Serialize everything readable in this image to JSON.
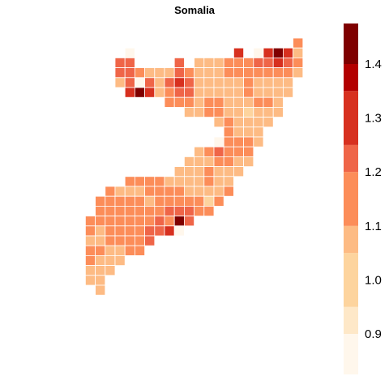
{
  "title": "Somalia",
  "legend": {
    "tick_labels": [
      "0.9",
      "1.0",
      "1.1",
      "1.2",
      "1.3",
      "1.4"
    ],
    "tick_values": [
      0.9,
      1.0,
      1.1,
      1.2,
      1.3,
      1.4
    ],
    "range": [
      0.825,
      1.475
    ],
    "band_colors": [
      "#FFF7EC",
      "#FEE8C8",
      "#FDD49E",
      "#FDBB84",
      "#FC8D59",
      "#EF6548",
      "#D7301F",
      "#B30000",
      "#7F0000"
    ],
    "band_breaks": [
      0.825,
      0.9,
      0.95,
      1.05,
      1.1,
      1.2,
      1.25,
      1.35,
      1.4,
      1.475
    ]
  },
  "chart_data": {
    "type": "heatmap",
    "title": "Somalia",
    "legend_position": "right",
    "value_range": [
      0.825,
      1.475
    ],
    "colormap": "OrRd",
    "cells": [
      {
        "col": 18,
        "row": 0,
        "v": 1.1
      },
      {
        "col": 1,
        "row": 1,
        "v": 0.86
      },
      {
        "col": 12,
        "row": 1,
        "v": 1.3
      },
      {
        "col": 14,
        "row": 1,
        "v": 0.86
      },
      {
        "col": 15,
        "row": 1,
        "v": 1.28
      },
      {
        "col": 16,
        "row": 1,
        "v": 1.45
      },
      {
        "col": 17,
        "row": 1,
        "v": 1.28
      },
      {
        "col": 18,
        "row": 1,
        "v": 1.05
      },
      {
        "col": 0,
        "row": 2,
        "v": 1.22
      },
      {
        "col": 1,
        "row": 2,
        "v": 1.22
      },
      {
        "col": 6,
        "row": 2,
        "v": 1.2
      },
      {
        "col": 8,
        "row": 2,
        "v": 1.05
      },
      {
        "col": 9,
        "row": 2,
        "v": 1.05
      },
      {
        "col": 10,
        "row": 2,
        "v": 1.05
      },
      {
        "col": 11,
        "row": 2,
        "v": 1.1
      },
      {
        "col": 12,
        "row": 2,
        "v": 1.1
      },
      {
        "col": 13,
        "row": 2,
        "v": 1.15
      },
      {
        "col": 14,
        "row": 2,
        "v": 1.2
      },
      {
        "col": 15,
        "row": 2,
        "v": 1.2
      },
      {
        "col": 16,
        "row": 2,
        "v": 1.3
      },
      {
        "col": 17,
        "row": 2,
        "v": 1.22
      },
      {
        "col": 18,
        "row": 2,
        "v": 1.1
      },
      {
        "col": 0,
        "row": 3,
        "v": 1.22
      },
      {
        "col": 1,
        "row": 3,
        "v": 1.22
      },
      {
        "col": 2,
        "row": 3,
        "v": 1.1
      },
      {
        "col": 3,
        "row": 3,
        "v": 1.05
      },
      {
        "col": 4,
        "row": 3,
        "v": 1.05
      },
      {
        "col": 5,
        "row": 3,
        "v": 1.05
      },
      {
        "col": 6,
        "row": 3,
        "v": 1.22
      },
      {
        "col": 7,
        "row": 3,
        "v": 1.1
      },
      {
        "col": 8,
        "row": 3,
        "v": 1.05
      },
      {
        "col": 9,
        "row": 3,
        "v": 1.05
      },
      {
        "col": 10,
        "row": 3,
        "v": 1.05
      },
      {
        "col": 11,
        "row": 3,
        "v": 1.1
      },
      {
        "col": 12,
        "row": 3,
        "v": 1.1
      },
      {
        "col": 13,
        "row": 3,
        "v": 1.1
      },
      {
        "col": 14,
        "row": 3,
        "v": 1.1
      },
      {
        "col": 15,
        "row": 3,
        "v": 1.1
      },
      {
        "col": 16,
        "row": 3,
        "v": 1.1
      },
      {
        "col": 17,
        "row": 3,
        "v": 1.1
      },
      {
        "col": 18,
        "row": 3,
        "v": 1.05
      },
      {
        "col": 0,
        "row": 4,
        "v": 1.05
      },
      {
        "col": 1,
        "row": 4,
        "v": 1.22
      },
      {
        "col": 2,
        "row": 4,
        "v": 0.86
      },
      {
        "col": 3,
        "row": 4,
        "v": 1.22
      },
      {
        "col": 4,
        "row": 4,
        "v": 1.05
      },
      {
        "col": 5,
        "row": 4,
        "v": 1.22
      },
      {
        "col": 6,
        "row": 4,
        "v": 1.3
      },
      {
        "col": 7,
        "row": 4,
        "v": 1.22
      },
      {
        "col": 8,
        "row": 4,
        "v": 1.05
      },
      {
        "col": 9,
        "row": 4,
        "v": 1.05
      },
      {
        "col": 10,
        "row": 4,
        "v": 1.05
      },
      {
        "col": 11,
        "row": 4,
        "v": 1.05
      },
      {
        "col": 12,
        "row": 4,
        "v": 1.05
      },
      {
        "col": 13,
        "row": 4,
        "v": 1.1
      },
      {
        "col": 14,
        "row": 4,
        "v": 1.05
      },
      {
        "col": 15,
        "row": 4,
        "v": 1.05
      },
      {
        "col": 16,
        "row": 4,
        "v": 1.05
      },
      {
        "col": 17,
        "row": 4,
        "v": 1.05
      },
      {
        "col": 1,
        "row": 5,
        "v": 1.3
      },
      {
        "col": 2,
        "row": 5,
        "v": 1.45
      },
      {
        "col": 3,
        "row": 5,
        "v": 1.3
      },
      {
        "col": 4,
        "row": 5,
        "v": 1.05
      },
      {
        "col": 5,
        "row": 5,
        "v": 1.1
      },
      {
        "col": 6,
        "row": 5,
        "v": 1.22
      },
      {
        "col": 7,
        "row": 5,
        "v": 1.22
      },
      {
        "col": 8,
        "row": 5,
        "v": 1.05
      },
      {
        "col": 9,
        "row": 5,
        "v": 1.05
      },
      {
        "col": 10,
        "row": 5,
        "v": 1.05
      },
      {
        "col": 11,
        "row": 5,
        "v": 1.05
      },
      {
        "col": 12,
        "row": 5,
        "v": 1.05
      },
      {
        "col": 13,
        "row": 5,
        "v": 1.1
      },
      {
        "col": 14,
        "row": 5,
        "v": 1.05
      },
      {
        "col": 15,
        "row": 5,
        "v": 1.05
      },
      {
        "col": 16,
        "row": 5,
        "v": 1.05
      },
      {
        "col": 17,
        "row": 5,
        "v": 1.05
      },
      {
        "col": 5,
        "row": 6,
        "v": 1.1
      },
      {
        "col": 6,
        "row": 6,
        "v": 1.1
      },
      {
        "col": 7,
        "row": 6,
        "v": 1.1
      },
      {
        "col": 8,
        "row": 6,
        "v": 1.05
      },
      {
        "col": 9,
        "row": 6,
        "v": 1.1
      },
      {
        "col": 10,
        "row": 6,
        "v": 1.1
      },
      {
        "col": 11,
        "row": 6,
        "v": 1.05
      },
      {
        "col": 12,
        "row": 6,
        "v": 1.05
      },
      {
        "col": 13,
        "row": 6,
        "v": 1.05
      },
      {
        "col": 14,
        "row": 6,
        "v": 1.1
      },
      {
        "col": 15,
        "row": 6,
        "v": 1.1
      },
      {
        "col": 16,
        "row": 6,
        "v": 1.05
      },
      {
        "col": 7,
        "row": 7,
        "v": 1.05
      },
      {
        "col": 8,
        "row": 7,
        "v": 1.05
      },
      {
        "col": 9,
        "row": 7,
        "v": 1.1
      },
      {
        "col": 10,
        "row": 7,
        "v": 1.1
      },
      {
        "col": 11,
        "row": 7,
        "v": 1.05
      },
      {
        "col": 12,
        "row": 7,
        "v": 1.05
      },
      {
        "col": 13,
        "row": 7,
        "v": 0.95
      },
      {
        "col": 14,
        "row": 7,
        "v": 1.05
      },
      {
        "col": 15,
        "row": 7,
        "v": 1.05
      },
      {
        "col": 16,
        "row": 7,
        "v": 1.05
      },
      {
        "col": 10,
        "row": 8,
        "v": 1.05
      },
      {
        "col": 11,
        "row": 8,
        "v": 1.1
      },
      {
        "col": 12,
        "row": 8,
        "v": 1.05
      },
      {
        "col": 13,
        "row": 8,
        "v": 1.05
      },
      {
        "col": 14,
        "row": 8,
        "v": 1.05
      },
      {
        "col": 15,
        "row": 8,
        "v": 1.05
      },
      {
        "col": 11,
        "row": 9,
        "v": 1.1
      },
      {
        "col": 12,
        "row": 9,
        "v": 1.05
      },
      {
        "col": 13,
        "row": 9,
        "v": 1.05
      },
      {
        "col": 14,
        "row": 9,
        "v": 1.05
      },
      {
        "col": 10,
        "row": 10,
        "v": 0.86
      },
      {
        "col": 11,
        "row": 10,
        "v": 1.1
      },
      {
        "col": 12,
        "row": 10,
        "v": 1.1
      },
      {
        "col": 13,
        "row": 10,
        "v": 1.1
      },
      {
        "col": 14,
        "row": 10,
        "v": 1.05
      },
      {
        "col": 8,
        "row": 11,
        "v": 1.05
      },
      {
        "col": 9,
        "row": 11,
        "v": 1.1
      },
      {
        "col": 10,
        "row": 11,
        "v": 1.22
      },
      {
        "col": 11,
        "row": 11,
        "v": 1.1
      },
      {
        "col": 12,
        "row": 11,
        "v": 1.1
      },
      {
        "col": 13,
        "row": 11,
        "v": 1.1
      },
      {
        "col": 7,
        "row": 12,
        "v": 1.05
      },
      {
        "col": 8,
        "row": 12,
        "v": 1.05
      },
      {
        "col": 9,
        "row": 12,
        "v": 1.05
      },
      {
        "col": 10,
        "row": 12,
        "v": 1.1
      },
      {
        "col": 11,
        "row": 12,
        "v": 1.1
      },
      {
        "col": 12,
        "row": 12,
        "v": 1.05
      },
      {
        "col": 13,
        "row": 12,
        "v": 1.05
      },
      {
        "col": 6,
        "row": 13,
        "v": 1.05
      },
      {
        "col": 7,
        "row": 13,
        "v": 1.05
      },
      {
        "col": 8,
        "row": 13,
        "v": 1.05
      },
      {
        "col": 9,
        "row": 13,
        "v": 1.1
      },
      {
        "col": 10,
        "row": 13,
        "v": 1.05
      },
      {
        "col": 11,
        "row": 13,
        "v": 1.05
      },
      {
        "col": 12,
        "row": 13,
        "v": 1.05
      },
      {
        "col": 1,
        "row": 14,
        "v": 1.1
      },
      {
        "col": 2,
        "row": 14,
        "v": 1.1
      },
      {
        "col": 3,
        "row": 14,
        "v": 1.1
      },
      {
        "col": 4,
        "row": 14,
        "v": 1.1
      },
      {
        "col": 5,
        "row": 14,
        "v": 1.05
      },
      {
        "col": 6,
        "row": 14,
        "v": 1.05
      },
      {
        "col": 7,
        "row": 14,
        "v": 1.05
      },
      {
        "col": 8,
        "row": 14,
        "v": 1.05
      },
      {
        "col": 9,
        "row": 14,
        "v": 1.1
      },
      {
        "col": 10,
        "row": 14,
        "v": 1.05
      },
      {
        "col": 11,
        "row": 14,
        "v": 1.05
      },
      {
        "col": -1,
        "row": 15,
        "v": 1.1
      },
      {
        "col": 0,
        "row": 15,
        "v": 1.05
      },
      {
        "col": 1,
        "row": 15,
        "v": 1.05
      },
      {
        "col": 2,
        "row": 15,
        "v": 1.05
      },
      {
        "col": 3,
        "row": 15,
        "v": 1.1
      },
      {
        "col": 4,
        "row": 15,
        "v": 1.1
      },
      {
        "col": 5,
        "row": 15,
        "v": 1.1
      },
      {
        "col": 6,
        "row": 15,
        "v": 1.1
      },
      {
        "col": 7,
        "row": 15,
        "v": 1.05
      },
      {
        "col": 8,
        "row": 15,
        "v": 1.05
      },
      {
        "col": 9,
        "row": 15,
        "v": 1.05
      },
      {
        "col": 10,
        "row": 15,
        "v": 1.05
      },
      {
        "col": 11,
        "row": 15,
        "v": 1.1
      },
      {
        "col": -2,
        "row": 16,
        "v": 1.1
      },
      {
        "col": -1,
        "row": 16,
        "v": 1.1
      },
      {
        "col": 0,
        "row": 16,
        "v": 1.1
      },
      {
        "col": 1,
        "row": 16,
        "v": 1.1
      },
      {
        "col": 2,
        "row": 16,
        "v": 1.1
      },
      {
        "col": 3,
        "row": 16,
        "v": 1.05
      },
      {
        "col": 4,
        "row": 16,
        "v": 1.1
      },
      {
        "col": 5,
        "row": 16,
        "v": 1.1
      },
      {
        "col": 6,
        "row": 16,
        "v": 1.1
      },
      {
        "col": 7,
        "row": 16,
        "v": 1.1
      },
      {
        "col": 8,
        "row": 16,
        "v": 1.1
      },
      {
        "col": 9,
        "row": 16,
        "v": 0.95
      },
      {
        "col": 10,
        "row": 16,
        "v": 1.1
      },
      {
        "col": -2,
        "row": 17,
        "v": 1.1
      },
      {
        "col": -1,
        "row": 17,
        "v": 1.1
      },
      {
        "col": 0,
        "row": 17,
        "v": 1.1
      },
      {
        "col": 1,
        "row": 17,
        "v": 1.1
      },
      {
        "col": 2,
        "row": 17,
        "v": 1.1
      },
      {
        "col": 3,
        "row": 17,
        "v": 1.1
      },
      {
        "col": 4,
        "row": 17,
        "v": 1.1
      },
      {
        "col": 5,
        "row": 17,
        "v": 1.22
      },
      {
        "col": 6,
        "row": 17,
        "v": 1.22
      },
      {
        "col": 7,
        "row": 17,
        "v": 1.22
      },
      {
        "col": 8,
        "row": 17,
        "v": 1.1
      },
      {
        "col": 9,
        "row": 17,
        "v": 1.1
      },
      {
        "col": -3,
        "row": 18,
        "v": 1.1
      },
      {
        "col": -2,
        "row": 18,
        "v": 1.1
      },
      {
        "col": -1,
        "row": 18,
        "v": 1.1
      },
      {
        "col": 0,
        "row": 18,
        "v": 1.1
      },
      {
        "col": 1,
        "row": 18,
        "v": 1.1
      },
      {
        "col": 2,
        "row": 18,
        "v": 1.1
      },
      {
        "col": 3,
        "row": 18,
        "v": 1.1
      },
      {
        "col": 4,
        "row": 18,
        "v": 1.22
      },
      {
        "col": 5,
        "row": 18,
        "v": 1.1
      },
      {
        "col": 6,
        "row": 18,
        "v": 1.45
      },
      {
        "col": 7,
        "row": 18,
        "v": 1.22
      },
      {
        "col": -3,
        "row": 19,
        "v": 1.1
      },
      {
        "col": -2,
        "row": 19,
        "v": 1.05
      },
      {
        "col": -1,
        "row": 19,
        "v": 1.1
      },
      {
        "col": 0,
        "row": 19,
        "v": 1.1
      },
      {
        "col": 1,
        "row": 19,
        "v": 1.1
      },
      {
        "col": 2,
        "row": 19,
        "v": 1.1
      },
      {
        "col": 3,
        "row": 19,
        "v": 1.22
      },
      {
        "col": 4,
        "row": 19,
        "v": 1.22
      },
      {
        "col": 5,
        "row": 19,
        "v": 1.3
      },
      {
        "col": 6,
        "row": 19,
        "v": 0.86
      },
      {
        "col": -3,
        "row": 20,
        "v": 1.05
      },
      {
        "col": -2,
        "row": 20,
        "v": 1.05
      },
      {
        "col": -1,
        "row": 20,
        "v": 1.1
      },
      {
        "col": 0,
        "row": 20,
        "v": 1.1
      },
      {
        "col": 1,
        "row": 20,
        "v": 1.1
      },
      {
        "col": 2,
        "row": 20,
        "v": 1.1
      },
      {
        "col": 3,
        "row": 20,
        "v": 1.22
      },
      {
        "col": -3,
        "row": 21,
        "v": 1.1
      },
      {
        "col": -2,
        "row": 21,
        "v": 1.1
      },
      {
        "col": -1,
        "row": 21,
        "v": 1.05
      },
      {
        "col": 0,
        "row": 21,
        "v": 1.05
      },
      {
        "col": 1,
        "row": 21,
        "v": 1.1
      },
      {
        "col": 2,
        "row": 21,
        "v": 1.1
      },
      {
        "col": -3,
        "row": 22,
        "v": 1.1
      },
      {
        "col": -2,
        "row": 22,
        "v": 1.05
      },
      {
        "col": -1,
        "row": 22,
        "v": 1.05
      },
      {
        "col": 0,
        "row": 22,
        "v": 1.05
      },
      {
        "col": -3,
        "row": 23,
        "v": 1.05
      },
      {
        "col": -2,
        "row": 23,
        "v": 1.05
      },
      {
        "col": -1,
        "row": 23,
        "v": 1.05
      },
      {
        "col": -3,
        "row": 24,
        "v": 1.05
      },
      {
        "col": -2,
        "row": 24,
        "v": 1.05
      },
      {
        "col": -2,
        "row": 25,
        "v": 1.05
      }
    ]
  }
}
